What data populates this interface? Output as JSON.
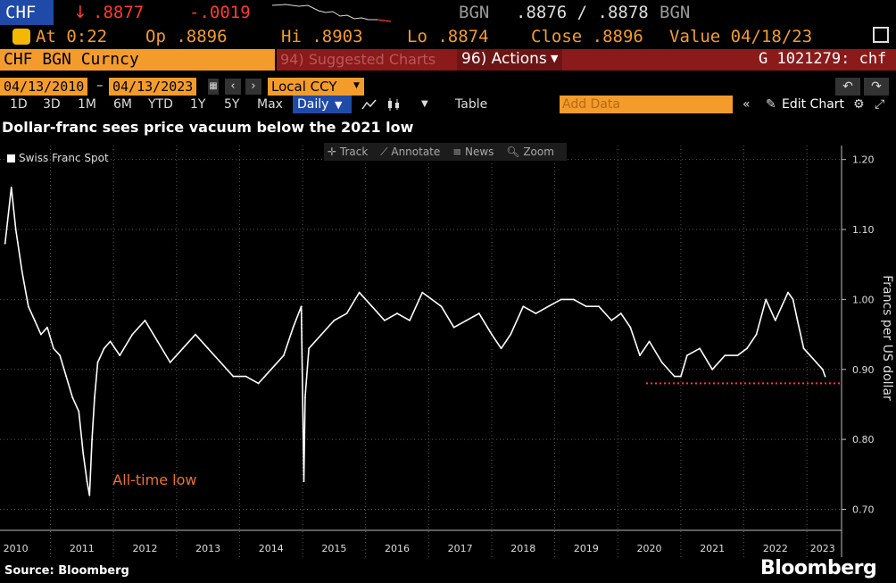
{
  "quote": {
    "ticker": "CHF",
    "last": ".8877",
    "change": "-.0019",
    "source": "BGN",
    "bid_ask": ".8876 / .8878",
    "source2": "BGN"
  },
  "stats": {
    "at": "At 0:22",
    "op": "Op .8896",
    "hi": "Hi .8903",
    "lo": "Lo .8874",
    "close": "Close .8896",
    "value": "Value 04/18/23"
  },
  "titlebar": {
    "security": "CHF BGN Curncy",
    "suggested": "94) Suggested Charts",
    "actions": "96) Actions",
    "page": "G 1021279: chf"
  },
  "dates": {
    "start": "04/13/2010",
    "end": "04/13/2023",
    "currency": "Local CCY"
  },
  "toolbar": {
    "periods": [
      "1D",
      "3D",
      "1M",
      "6M",
      "YTD",
      "1Y",
      "5Y",
      "Max"
    ],
    "frequency": "Daily",
    "table_label": "Table",
    "add_data_placeholder": "Add Data",
    "edit_chart_label": "Edit Chart"
  },
  "chart_tools": [
    "Track",
    "Annotate",
    "News",
    "Zoom"
  ],
  "colors": {
    "accent_orange": "#f39c2c",
    "alert_red": "#ff3b30",
    "header_maroon": "#8b1a1a",
    "highlight_blue": "#1f4aa8"
  },
  "chart_data": {
    "type": "line",
    "title": "Dollar-franc sees price vacuum below the 2021 low",
    "legend": "Swiss Franc Spot",
    "legend_placement": "top-left",
    "ylabel": "Francs per US dollar",
    "ylim": [
      0.67,
      1.22
    ],
    "y_ticks": [
      "1.20",
      "1.10",
      "1.00",
      "0.90",
      "0.80",
      "0.70"
    ],
    "y_tick_values": [
      1.2,
      1.1,
      1.0,
      0.9,
      0.8,
      0.7
    ],
    "x_ticks": [
      "2010",
      "2011",
      "2012",
      "2013",
      "2014",
      "2015",
      "2016",
      "2017",
      "2018",
      "2019",
      "2020",
      "2021",
      "2022",
      "2023"
    ],
    "xlim": [
      2010.2,
      2023.55
    ],
    "grid": true,
    "series": [
      {
        "name": "Swiss Franc Spot",
        "x": [
          2010.28,
          2010.38,
          2010.45,
          2010.55,
          2010.65,
          2010.75,
          2010.85,
          2010.95,
          2011.05,
          2011.15,
          2011.25,
          2011.35,
          2011.45,
          2011.52,
          2011.58,
          2011.62,
          2011.66,
          2011.7,
          2011.75,
          2011.85,
          2011.95,
          2012.1,
          2012.3,
          2012.5,
          2012.7,
          2012.9,
          2013.1,
          2013.3,
          2013.5,
          2013.7,
          2013.9,
          2014.1,
          2014.3,
          2014.5,
          2014.7,
          2014.85,
          2014.98,
          2015.02,
          2015.04,
          2015.1,
          2015.3,
          2015.5,
          2015.7,
          2015.9,
          2016.1,
          2016.3,
          2016.5,
          2016.7,
          2016.9,
          2017.05,
          2017.2,
          2017.4,
          2017.6,
          2017.8,
          2018.0,
          2018.15,
          2018.3,
          2018.5,
          2018.7,
          2018.9,
          2019.1,
          2019.3,
          2019.5,
          2019.7,
          2019.9,
          2020.05,
          2020.2,
          2020.35,
          2020.5,
          2020.7,
          2020.9,
          2021.0,
          2021.1,
          2021.3,
          2021.5,
          2021.7,
          2021.9,
          2022.05,
          2022.2,
          2022.35,
          2022.5,
          2022.6,
          2022.7,
          2022.78,
          2022.85,
          2022.95,
          2023.05,
          2023.15,
          2023.25,
          2023.29
        ],
        "values": [
          1.08,
          1.16,
          1.1,
          1.04,
          0.99,
          0.97,
          0.95,
          0.96,
          0.93,
          0.92,
          0.89,
          0.86,
          0.84,
          0.78,
          0.74,
          0.72,
          0.8,
          0.86,
          0.91,
          0.93,
          0.94,
          0.92,
          0.95,
          0.97,
          0.94,
          0.91,
          0.93,
          0.95,
          0.93,
          0.91,
          0.89,
          0.89,
          0.88,
          0.9,
          0.92,
          0.96,
          0.99,
          0.74,
          0.86,
          0.93,
          0.95,
          0.97,
          0.98,
          1.01,
          0.99,
          0.97,
          0.98,
          0.97,
          1.01,
          1.0,
          0.99,
          0.96,
          0.97,
          0.98,
          0.95,
          0.93,
          0.95,
          0.99,
          0.98,
          0.99,
          1.0,
          1.0,
          0.99,
          0.99,
          0.97,
          0.98,
          0.96,
          0.92,
          0.94,
          0.91,
          0.89,
          0.89,
          0.92,
          0.93,
          0.9,
          0.92,
          0.92,
          0.93,
          0.95,
          1.0,
          0.97,
          0.99,
          1.01,
          1.0,
          0.97,
          0.93,
          0.92,
          0.91,
          0.9,
          0.89
        ]
      }
    ],
    "reference_line": {
      "value": 0.88,
      "from": 2020.45,
      "to": 2023.55,
      "style": "dotted red"
    },
    "annotations": [
      {
        "text": "All-time low",
        "x": 2011.62,
        "y": 0.72
      }
    ],
    "source_note": "Source: Bloomberg",
    "brand": "Bloomberg"
  }
}
